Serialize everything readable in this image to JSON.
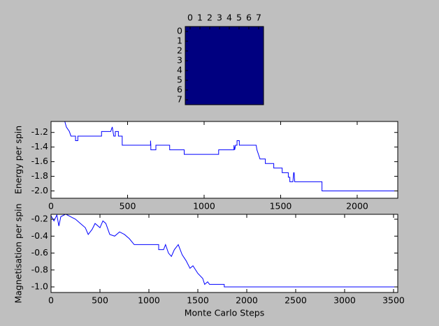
{
  "chart_data": [
    {
      "type": "heatmap",
      "xticks": [
        0,
        1,
        2,
        3,
        4,
        5,
        6,
        7
      ],
      "yticks": [
        0,
        1,
        2,
        3,
        4,
        5,
        6,
        7
      ],
      "color": "#000080",
      "values": [
        [
          -1,
          -1,
          -1,
          -1,
          -1,
          -1,
          -1,
          -1
        ],
        [
          -1,
          -1,
          -1,
          -1,
          -1,
          -1,
          -1,
          -1
        ],
        [
          -1,
          -1,
          -1,
          -1,
          -1,
          -1,
          -1,
          -1
        ],
        [
          -1,
          -1,
          -1,
          -1,
          -1,
          -1,
          -1,
          -1
        ],
        [
          -1,
          -1,
          -1,
          -1,
          -1,
          -1,
          -1,
          -1
        ],
        [
          -1,
          -1,
          -1,
          -1,
          -1,
          -1,
          -1,
          -1
        ],
        [
          -1,
          -1,
          -1,
          -1,
          -1,
          -1,
          -1,
          -1
        ],
        [
          -1,
          -1,
          -1,
          -1,
          -1,
          -1,
          -1,
          -1
        ]
      ]
    },
    {
      "type": "line",
      "y_label": "Energy per spin",
      "xlim": [
        0,
        2265
      ],
      "ylim": [
        -2.1,
        -1.05
      ],
      "xticks": [
        0,
        500,
        1000,
        1500,
        2000
      ],
      "yticks": [
        -1.2,
        -1.4,
        -1.6,
        -1.8,
        {
          "value": -2,
          "label": "-2.0"
        }
      ],
      "series": [
        {
          "color": "#0000ff",
          "x": [
            90,
            100,
            120,
            130,
            150,
            160,
            160,
            175,
            175,
            330,
            330,
            390,
            400,
            405,
            410,
            420,
            420,
            440,
            440,
            465,
            465,
            650,
            650,
            652,
            652,
            685,
            685,
            775,
            775,
            870,
            870,
            1095,
            1095,
            1195,
            1195,
            1200,
            1205,
            1215,
            1215,
            1230,
            1230,
            1245,
            1245,
            1340,
            1345,
            1355,
            1365,
            1375,
            1400,
            1400,
            1455,
            1455,
            1510,
            1510,
            1550,
            1550,
            1560,
            1560,
            1580,
            1585,
            1588,
            1592,
            1592,
            1770,
            1770,
            2265
          ],
          "values": [
            -1.05,
            -1.125,
            -1.1875,
            -1.25,
            -1.25,
            -1.25,
            -1.3125,
            -1.3125,
            -1.25,
            -1.25,
            -1.1875,
            -1.1875,
            -1.125,
            -1.1875,
            -1.25,
            -1.25,
            -1.1875,
            -1.1875,
            -1.25,
            -1.25,
            -1.375,
            -1.375,
            -1.3125,
            -1.375,
            -1.4375,
            -1.4375,
            -1.375,
            -1.375,
            -1.4375,
            -1.4375,
            -1.5,
            -1.5,
            -1.4375,
            -1.4375,
            -1.375,
            -1.4375,
            -1.375,
            -1.375,
            -1.3125,
            -1.3125,
            -1.375,
            -1.375,
            -1.375,
            -1.375,
            -1.4375,
            -1.5,
            -1.5625,
            -1.5625,
            -1.5625,
            -1.625,
            -1.625,
            -1.6875,
            -1.6875,
            -1.75,
            -1.75,
            -1.8125,
            -1.8125,
            -1.875,
            -1.875,
            -1.75,
            -1.75,
            -1.875,
            -1.875,
            -1.875,
            -2.0,
            -2.0
          ]
        }
      ]
    },
    {
      "type": "line",
      "y_label": "Magnetisation per spin",
      "x_label": "Monte Carlo Steps",
      "xlim": [
        0,
        3543
      ],
      "ylim": [
        -1.066,
        -0.142
      ],
      "xticks": [
        0,
        500,
        1000,
        1500,
        2000,
        2500,
        3000,
        3500
      ],
      "yticks": [
        -0.2,
        -0.4,
        -0.6,
        -0.8,
        {
          "value": -1,
          "label": "-1.0"
        }
      ],
      "series": [
        {
          "color": "#0000ff",
          "x": [
            0,
            30,
            60,
            80,
            100,
            150,
            200,
            250,
            300,
            350,
            380,
            420,
            450,
            500,
            530,
            560,
            600,
            650,
            700,
            750,
            800,
            850,
            1000,
            1100,
            1100,
            1150,
            1170,
            1200,
            1230,
            1260,
            1300,
            1340,
            1380,
            1420,
            1450,
            1500,
            1550,
            1570,
            1600,
            1620,
            1770,
            1770,
            3543
          ],
          "values": [
            -0.16,
            -0.22,
            -0.15,
            -0.28,
            -0.17,
            -0.14,
            -0.17,
            -0.2,
            -0.25,
            -0.3,
            -0.38,
            -0.32,
            -0.25,
            -0.3,
            -0.22,
            -0.25,
            -0.38,
            -0.4,
            -0.35,
            -0.38,
            -0.43,
            -0.5,
            -0.5,
            -0.5,
            -0.56,
            -0.56,
            -0.5,
            -0.6,
            -0.64,
            -0.56,
            -0.5,
            -0.62,
            -0.69,
            -0.78,
            -0.75,
            -0.84,
            -0.9,
            -0.97,
            -0.94,
            -0.97,
            -0.97,
            -1.0,
            -1.0
          ]
        }
      ]
    }
  ]
}
